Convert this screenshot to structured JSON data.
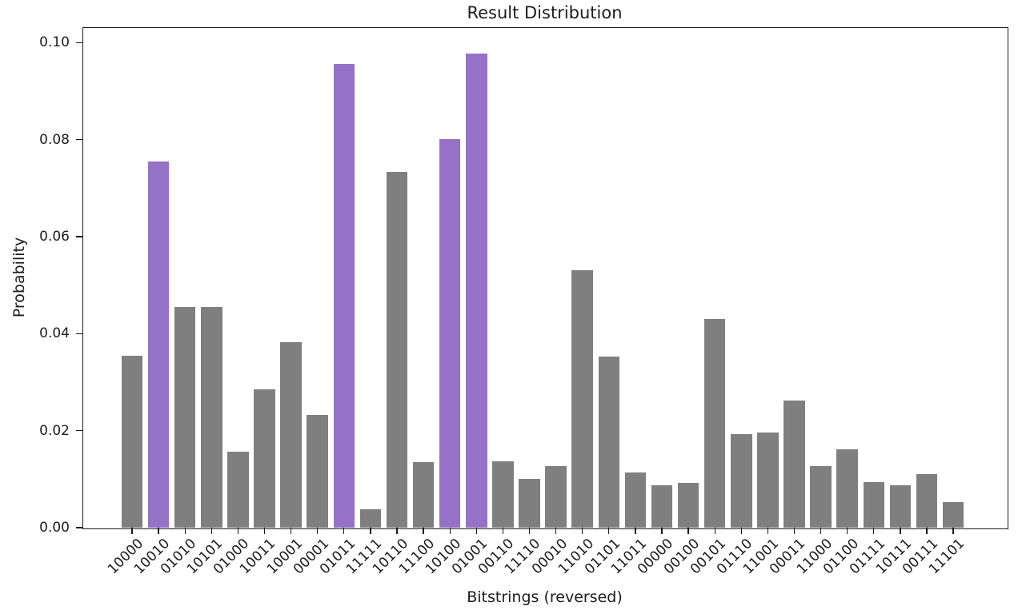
{
  "figure": {
    "background": "#ffffff"
  },
  "chart_data": {
    "type": "bar",
    "title": "Result Distribution",
    "xlabel": "Bitstrings (reversed)",
    "ylabel": "Probability",
    "categories": [
      "10000",
      "10010",
      "01010",
      "10101",
      "01000",
      "10011",
      "10001",
      "00001",
      "01011",
      "11111",
      "10110",
      "11100",
      "10100",
      "01001",
      "00110",
      "11110",
      "00010",
      "11010",
      "01101",
      "11011",
      "00000",
      "00100",
      "00101",
      "01110",
      "11001",
      "00011",
      "11000",
      "01100",
      "01111",
      "10111",
      "00111",
      "11101"
    ],
    "values": [
      0.0355,
      0.0755,
      0.0455,
      0.0455,
      0.0157,
      0.0285,
      0.0383,
      0.0233,
      0.0956,
      0.0038,
      0.0733,
      0.0135,
      0.0801,
      0.0978,
      0.0137,
      0.0101,
      0.0127,
      0.0531,
      0.0353,
      0.0113,
      0.0088,
      0.0092,
      0.0431,
      0.0193,
      0.0196,
      0.0262,
      0.0127,
      0.0162,
      0.0094,
      0.0088,
      0.0111,
      0.0053
    ],
    "highlighted_categories": [
      "10010",
      "01011",
      "10100",
      "01001"
    ],
    "yticks": [
      0.0,
      0.02,
      0.04,
      0.06,
      0.08,
      0.1
    ],
    "ytick_labels": [
      "0.00",
      "0.02",
      "0.04",
      "0.06",
      "0.08",
      "0.10"
    ],
    "ylim": [
      0,
      0.1032
    ],
    "xtick_rotation_deg": 45,
    "grid": false,
    "legend_position": "none",
    "colors": {
      "bar": "#7f7f7f",
      "highlighted_bar": "#9572c5",
      "axis": "#1a1a1a",
      "text": "#1c1c1c"
    }
  }
}
